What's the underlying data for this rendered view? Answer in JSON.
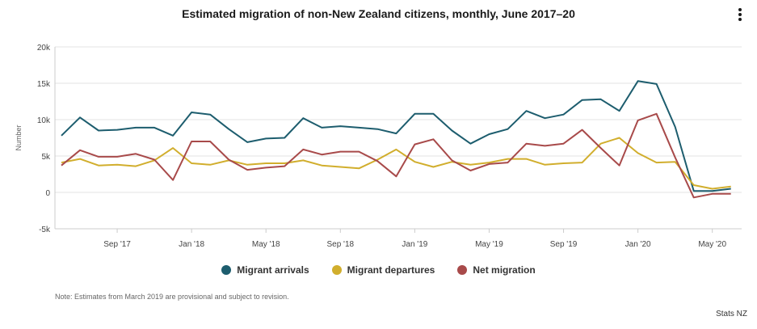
{
  "header": {
    "title": "Estimated migration of non-New Zealand citizens, monthly, June 2017–20",
    "menu_icon": "vertical-ellipsis-icon"
  },
  "chart_data": {
    "type": "line",
    "title": "Estimated migration of non-New Zealand citizens, monthly, June 2017–20",
    "ylabel": "Number",
    "xlabel": "",
    "ylim": [
      -5000,
      20000
    ],
    "yticks": [
      -5000,
      0,
      5000,
      10000,
      15000,
      20000
    ],
    "ytick_labels": [
      "-5k",
      "0",
      "5k",
      "10k",
      "15k",
      "20k"
    ],
    "x": [
      "Jun '17",
      "Jul '17",
      "Aug '17",
      "Sep '17",
      "Oct '17",
      "Nov '17",
      "Dec '17",
      "Jan '18",
      "Feb '18",
      "Mar '18",
      "Apr '18",
      "May '18",
      "Jun '18",
      "Jul '18",
      "Aug '18",
      "Sep '18",
      "Oct '18",
      "Nov '18",
      "Dec '18",
      "Jan '19",
      "Feb '19",
      "Mar '19",
      "Apr '19",
      "May '19",
      "Jun '19",
      "Jul '19",
      "Aug '19",
      "Sep '19",
      "Oct '19",
      "Nov '19",
      "Dec '19",
      "Jan '20",
      "Feb '20",
      "Mar '20",
      "Apr '20",
      "May '20",
      "Jun '20"
    ],
    "xtick_labels": [
      {
        "index": 3,
        "label": "Sep '17"
      },
      {
        "index": 7,
        "label": "Jan '18"
      },
      {
        "index": 11,
        "label": "May '18"
      },
      {
        "index": 15,
        "label": "Sep '18"
      },
      {
        "index": 19,
        "label": "Jan '19"
      },
      {
        "index": 23,
        "label": "May '19"
      },
      {
        "index": 27,
        "label": "Sep '19"
      },
      {
        "index": 31,
        "label": "Jan '20"
      },
      {
        "index": 35,
        "label": "May '20"
      }
    ],
    "grid": true,
    "legend_position": "bottom",
    "series": [
      {
        "name": "Migrant arrivals",
        "color": "#1d5d6e",
        "values": [
          7800,
          10300,
          8500,
          8600,
          8900,
          8900,
          7800,
          11000,
          10700,
          8700,
          6900,
          7400,
          7500,
          10200,
          8900,
          9100,
          8900,
          8700,
          8100,
          10800,
          10800,
          8500,
          6700,
          8000,
          8700,
          11200,
          10200,
          10700,
          12700,
          12800,
          11200,
          15300,
          14900,
          9000,
          200,
          200,
          500
        ]
      },
      {
        "name": "Migrant departures",
        "color": "#d1ae2d",
        "values": [
          4100,
          4600,
          3700,
          3800,
          3600,
          4400,
          6100,
          4000,
          3800,
          4400,
          3800,
          4000,
          4000,
          4400,
          3700,
          3500,
          3300,
          4500,
          5900,
          4200,
          3500,
          4200,
          3800,
          4100,
          4600,
          4600,
          3800,
          4000,
          4100,
          6700,
          7500,
          5400,
          4100,
          4200,
          1000,
          500,
          800
        ]
      },
      {
        "name": "Net migration",
        "color": "#a84a4a",
        "values": [
          3700,
          5800,
          4900,
          4900,
          5300,
          4500,
          1700,
          7000,
          7000,
          4500,
          3100,
          3400,
          3600,
          5900,
          5200,
          5600,
          5600,
          4300,
          2200,
          6600,
          7300,
          4400,
          3000,
          3900,
          4100,
          6700,
          6400,
          6700,
          8600,
          6100,
          3700,
          9900,
          10800,
          4800,
          -700,
          -200,
          -200
        ]
      }
    ]
  },
  "legend": [
    {
      "label": "Migrant arrivals",
      "color": "#1d5d6e"
    },
    {
      "label": "Migrant departures",
      "color": "#d1ae2d"
    },
    {
      "label": "Net migration",
      "color": "#a84a4a"
    }
  ],
  "note": "Note: Estimates from March 2019 are provisional and subject to revision.",
  "credit": "Stats NZ"
}
